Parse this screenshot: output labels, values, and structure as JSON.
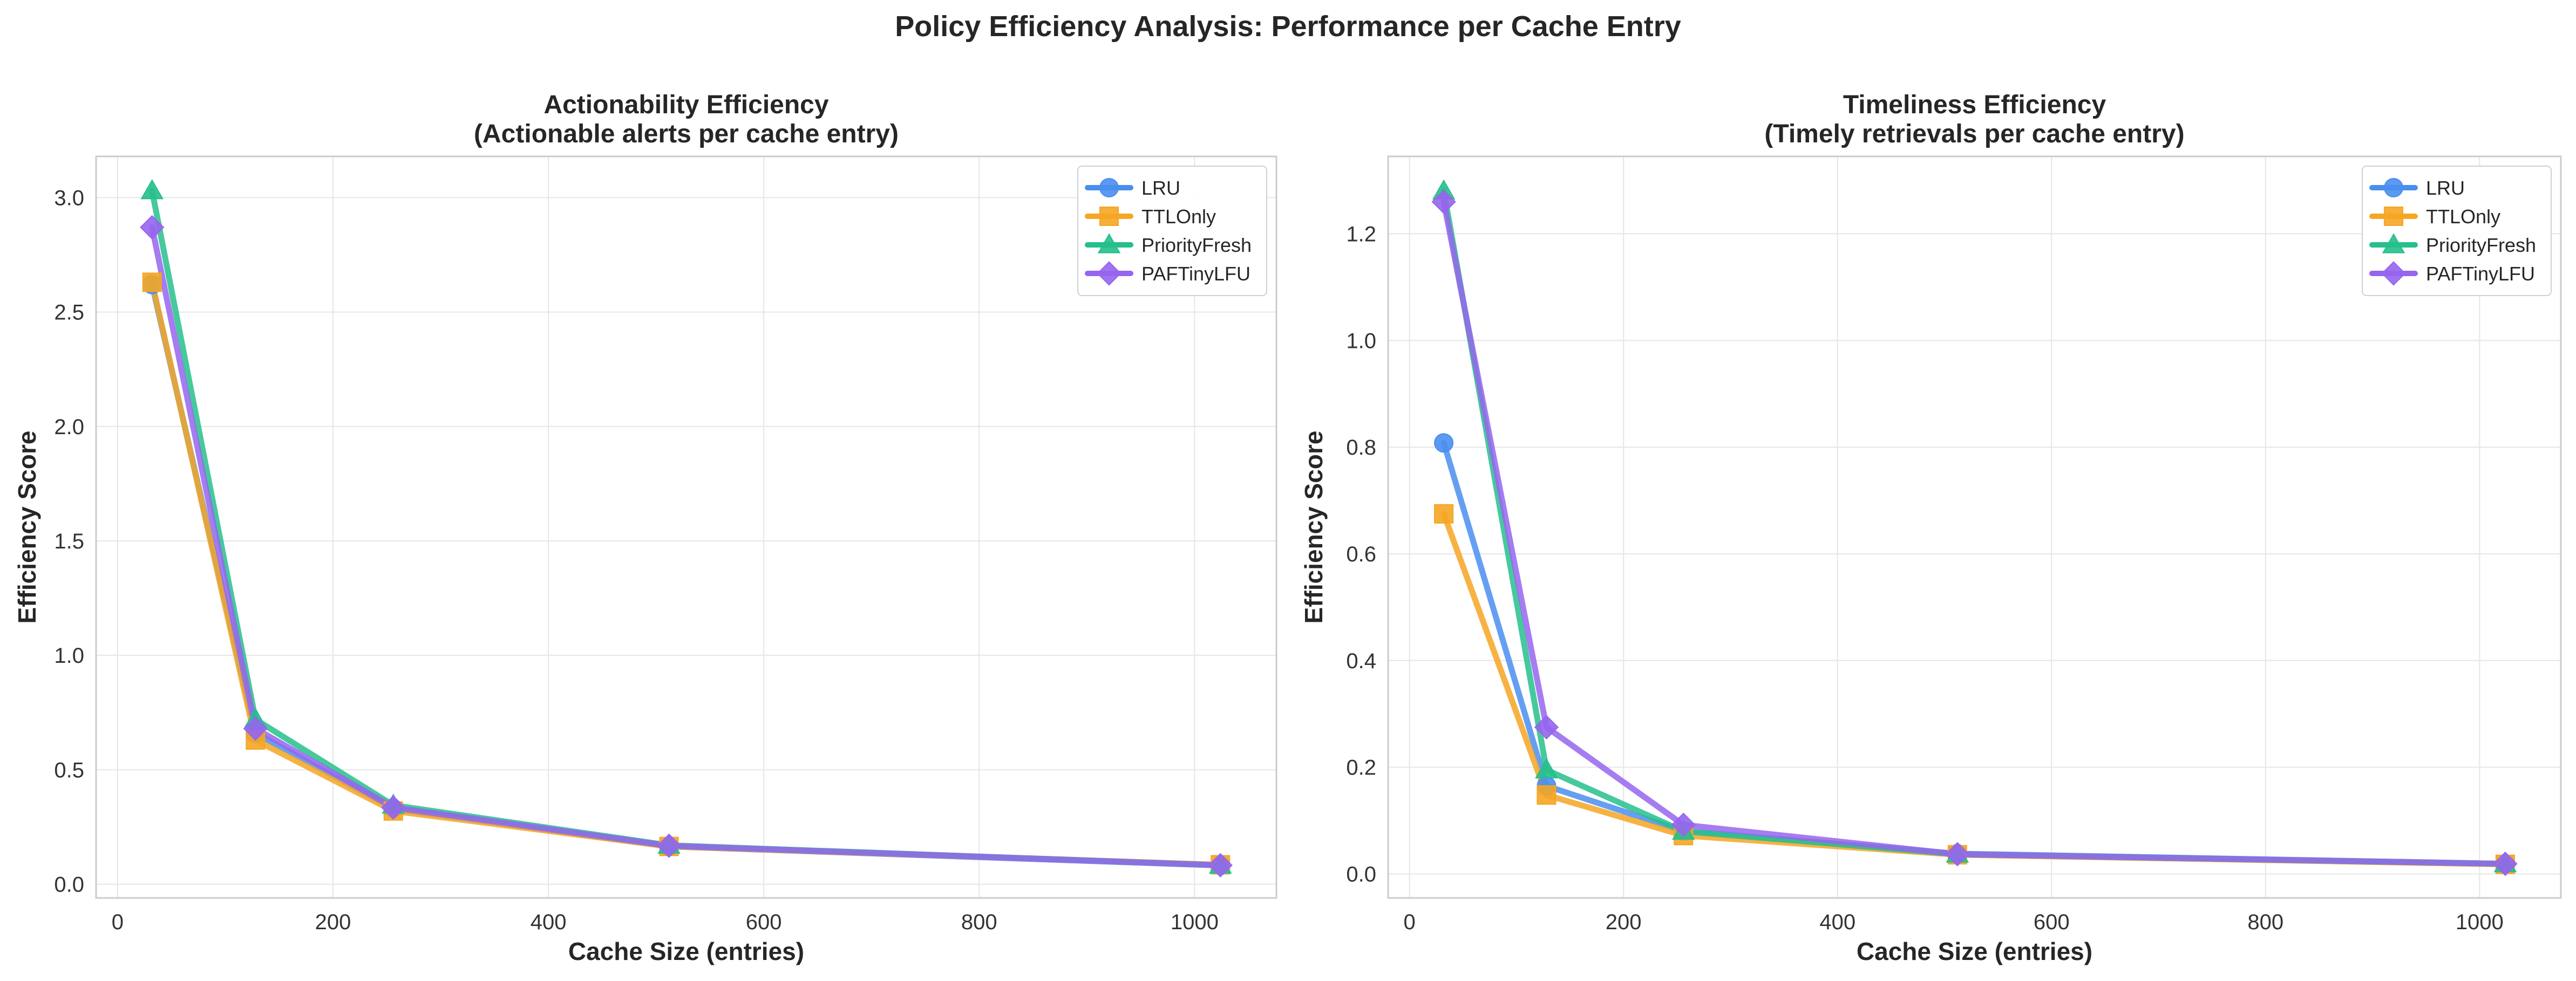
{
  "figure": {
    "title": "Policy Efficiency Analysis: Performance per Cache Entry"
  },
  "styles": {
    "colors": {
      "LRU": "#4a8ef0",
      "TTLOnly": "#f5a623",
      "PriorityFresh": "#26bf8c",
      "PAFTinyLFU": "#9665ee"
    },
    "markers": {
      "LRU": "circle",
      "TTLOnly": "square",
      "PriorityFresh": "triangle",
      "PAFTinyLFU": "diamond"
    }
  },
  "chart_data": [
    {
      "type": "line",
      "title": "Actionability Efficiency",
      "subtitle": "(Actionable alerts per cache entry)",
      "xlabel": "Cache Size (entries)",
      "ylabel": "Efficiency Score",
      "xlim": [
        -20,
        1076
      ],
      "ylim": [
        -0.06,
        3.18
      ],
      "xticks": [
        0,
        200,
        400,
        600,
        800,
        1000
      ],
      "xtick_labels": [
        "0",
        "200",
        "400",
        "600",
        "800",
        "1000"
      ],
      "yticks": [
        0.0,
        0.5,
        1.0,
        1.5,
        2.0,
        2.5,
        3.0
      ],
      "ytick_labels": [
        "0.0",
        "0.5",
        "1.0",
        "1.5",
        "2.0",
        "2.5",
        "3.0"
      ],
      "grid": true,
      "legend": "top-right",
      "x": [
        32,
        128,
        256,
        512,
        1024
      ],
      "series": [
        {
          "name": "LRU",
          "values": [
            2.62,
            0.66,
            0.33,
            0.165,
            0.082
          ]
        },
        {
          "name": "TTLOnly",
          "values": [
            2.63,
            0.63,
            0.32,
            0.165,
            0.085
          ]
        },
        {
          "name": "PriorityFresh",
          "values": [
            3.03,
            0.72,
            0.345,
            0.17,
            0.083
          ]
        },
        {
          "name": "PAFTinyLFU",
          "values": [
            2.87,
            0.68,
            0.335,
            0.168,
            0.083
          ]
        }
      ]
    },
    {
      "type": "line",
      "title": "Timeliness Efficiency",
      "subtitle": "(Timely retrievals per cache entry)",
      "xlabel": "Cache Size (entries)",
      "ylabel": "Efficiency Score",
      "xlim": [
        -20,
        1076
      ],
      "ylim": [
        -0.045,
        1.345
      ],
      "xticks": [
        0,
        200,
        400,
        600,
        800,
        1000
      ],
      "xtick_labels": [
        "0",
        "200",
        "400",
        "600",
        "800",
        "1000"
      ],
      "yticks": [
        0.0,
        0.2,
        0.4,
        0.6,
        0.8,
        1.0,
        1.2
      ],
      "ytick_labels": [
        "0.0",
        "0.2",
        "0.4",
        "0.6",
        "0.8",
        "1.0",
        "1.2"
      ],
      "grid": true,
      "legend": "top-right",
      "x": [
        32,
        128,
        256,
        512,
        1024
      ],
      "series": [
        {
          "name": "LRU",
          "values": [
            0.808,
            0.165,
            0.08,
            0.038,
            0.019
          ]
        },
        {
          "name": "TTLOnly",
          "values": [
            0.675,
            0.148,
            0.072,
            0.036,
            0.018
          ]
        },
        {
          "name": "PriorityFresh",
          "values": [
            1.28,
            0.195,
            0.08,
            0.037,
            0.019
          ]
        },
        {
          "name": "PAFTinyLFU",
          "values": [
            1.26,
            0.275,
            0.092,
            0.037,
            0.019
          ]
        }
      ]
    }
  ]
}
